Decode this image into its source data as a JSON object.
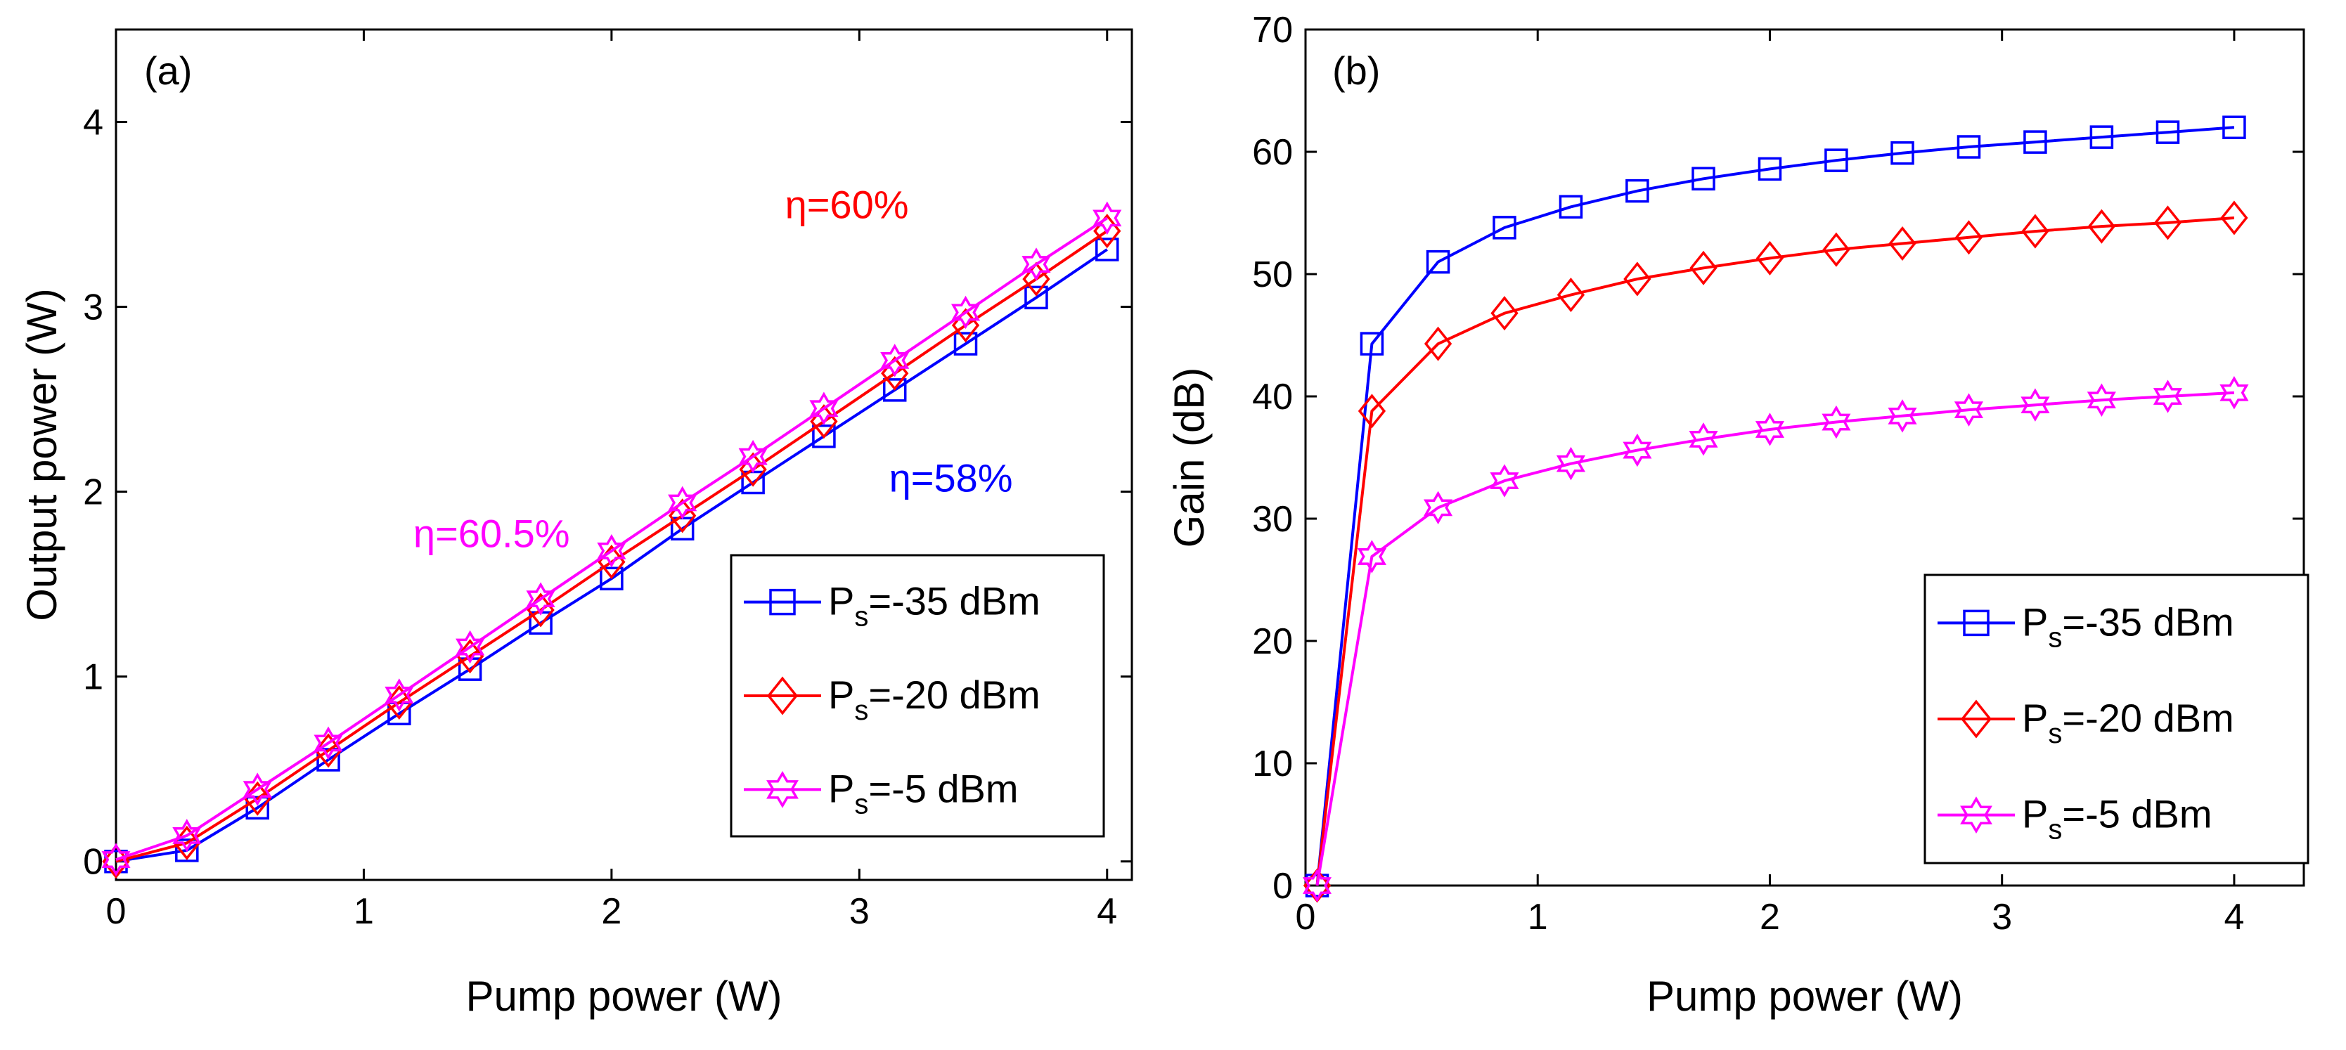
{
  "chart_data": [
    {
      "type": "line",
      "panel_label": "(a)",
      "xlabel": "Pump power (W)",
      "ylabel": "Output power (W)",
      "xlim": [
        0,
        4.1
      ],
      "ylim": [
        -0.1,
        4.5
      ],
      "xticks": [
        0,
        1,
        2,
        3,
        4
      ],
      "yticks": [
        0,
        1,
        2,
        3,
        4
      ],
      "x": [
        0,
        0.286,
        0.571,
        0.857,
        1.143,
        1.429,
        1.714,
        2.0,
        2.286,
        2.571,
        2.857,
        3.143,
        3.429,
        3.714,
        4.0
      ],
      "series": [
        {
          "name": "Ps=-35 dBm",
          "label_main": "P",
          "label_sub": "s",
          "label_rest": "=-35 dBm",
          "color": "#0000ff",
          "marker": "square",
          "values": [
            0.0,
            0.06,
            0.29,
            0.55,
            0.8,
            1.04,
            1.29,
            1.53,
            1.8,
            2.05,
            2.3,
            2.55,
            2.8,
            3.05,
            3.31
          ]
        },
        {
          "name": "Ps=-20 dBm",
          "label_main": "P",
          "label_sub": "s",
          "label_rest": "=-20 dBm",
          "color": "#ff0000",
          "marker": "diamond",
          "values": [
            0.0,
            0.1,
            0.34,
            0.6,
            0.86,
            1.11,
            1.36,
            1.62,
            1.87,
            2.12,
            2.38,
            2.64,
            2.9,
            3.15,
            3.41
          ]
        },
        {
          "name": "Ps=-5 dBm",
          "label_main": "P",
          "label_sub": "s",
          "label_rest": "=-5 dBm",
          "color": "#ff00ff",
          "marker": "star",
          "values": [
            0.01,
            0.14,
            0.39,
            0.64,
            0.9,
            1.16,
            1.42,
            1.68,
            1.94,
            2.19,
            2.45,
            2.71,
            2.97,
            3.23,
            3.48
          ]
        }
      ],
      "legend_position": "lower-right",
      "annotations": [
        {
          "text": "η=60%",
          "color": "#ff0000",
          "x": 2.7,
          "y": 3.48
        },
        {
          "text": "η=58%",
          "color": "#0000ff",
          "x": 3.12,
          "y": 2.0
        },
        {
          "text": "η=60.5%",
          "color": "#ff00ff",
          "x": 1.2,
          "y": 1.7
        }
      ]
    },
    {
      "type": "line",
      "panel_label": "(b)",
      "xlabel": "Pump power (W)",
      "ylabel": "Gain (dB)",
      "xlim": [
        0,
        4.3
      ],
      "ylim": [
        0,
        70
      ],
      "xticks": [
        0,
        1,
        2,
        3,
        4
      ],
      "yticks": [
        0,
        10,
        20,
        30,
        40,
        50,
        60,
        70
      ],
      "x": [
        0.05,
        0.286,
        0.571,
        0.857,
        1.143,
        1.429,
        1.714,
        2.0,
        2.286,
        2.571,
        2.857,
        3.143,
        3.429,
        3.714,
        4.0
      ],
      "series": [
        {
          "name": "Ps=-35 dBm",
          "label_main": "P",
          "label_sub": "s",
          "label_rest": "=-35 dBm",
          "color": "#0000ff",
          "marker": "square",
          "values": [
            0,
            44.3,
            51.0,
            53.8,
            55.5,
            56.8,
            57.8,
            58.6,
            59.3,
            59.9,
            60.4,
            60.8,
            61.2,
            61.6,
            62.0
          ]
        },
        {
          "name": "Ps=-20 dBm",
          "label_main": "P",
          "label_sub": "s",
          "label_rest": "=-20 dBm",
          "color": "#ff0000",
          "marker": "diamond",
          "values": [
            0,
            38.8,
            44.3,
            46.8,
            48.3,
            49.6,
            50.5,
            51.3,
            52.0,
            52.5,
            53.0,
            53.5,
            53.9,
            54.2,
            54.6
          ]
        },
        {
          "name": "Ps=-5 dBm",
          "label_main": "P",
          "label_sub": "s",
          "label_rest": "=-5 dBm",
          "color": "#ff00ff",
          "marker": "star",
          "values": [
            0,
            26.9,
            30.9,
            33.1,
            34.5,
            35.6,
            36.5,
            37.3,
            37.9,
            38.4,
            38.9,
            39.3,
            39.7,
            40.0,
            40.3
          ]
        }
      ],
      "legend_position": "lower-right",
      "annotations": []
    }
  ]
}
